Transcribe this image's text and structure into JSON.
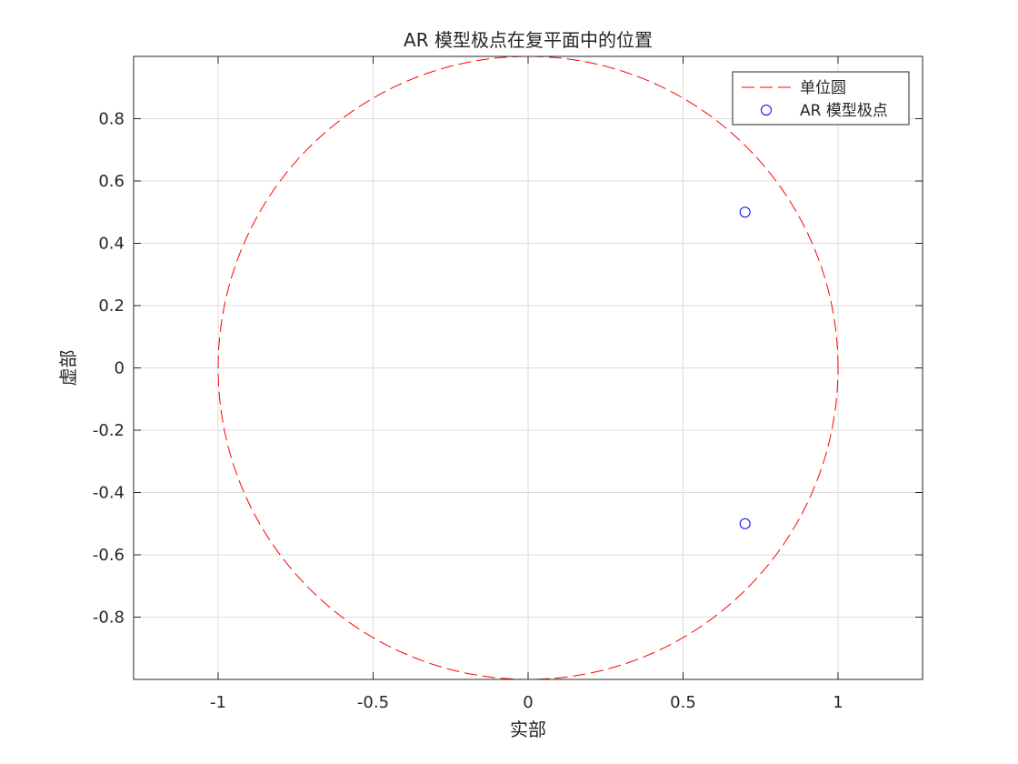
{
  "chart_data": {
    "type": "scatter",
    "title": "AR 模型极点在复平面中的位置",
    "xlabel": "实部",
    "ylabel": "虚部",
    "xlim": [
      -1.2727,
      1.2727
    ],
    "ylim": [
      -1,
      1
    ],
    "xticks": [
      -1,
      -0.5,
      0,
      0.5,
      1
    ],
    "xtick_labels": [
      "-1",
      "-0.5",
      "0",
      "0.5",
      "1"
    ],
    "yticks": [
      -0.8,
      -0.6,
      -0.4,
      -0.2,
      0,
      0.2,
      0.4,
      0.6,
      0.8
    ],
    "ytick_labels": [
      "-0.8",
      "-0.6",
      "-0.4",
      "-0.2",
      "0",
      "0.2",
      "0.4",
      "0.6",
      "0.8"
    ],
    "grid": true,
    "legend_position": "top-right",
    "series": [
      {
        "name": "单位圆",
        "kind": "circle-line",
        "style": "dashed",
        "color": "#ff0000",
        "center": [
          0,
          0
        ],
        "radius": 1
      },
      {
        "name": "AR 模型极点",
        "kind": "markers",
        "marker": "circle-open",
        "color": "#0000ff",
        "points": [
          [
            0.7,
            0.5
          ],
          [
            0.7,
            -0.5
          ]
        ]
      }
    ]
  }
}
